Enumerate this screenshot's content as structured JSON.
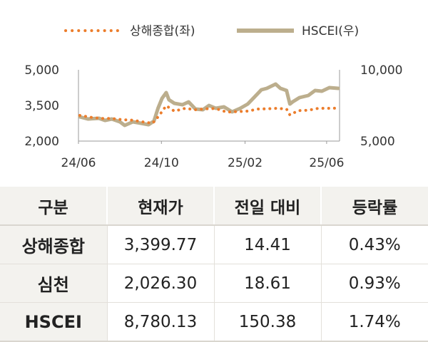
{
  "chart_data": {
    "type": "line",
    "x_ticks": [
      "24/06",
      "24/10",
      "25/02",
      "25/06"
    ],
    "y_left_ticks": [
      "5,000",
      "3,500",
      "2,000"
    ],
    "y_right_ticks": [
      "10,000",
      "5,000"
    ],
    "y_left_range": [
      2000,
      5000
    ],
    "y_right_range": [
      5000,
      10000
    ],
    "x_range": [
      "2024-06-01",
      "2025-06-20"
    ],
    "grid": false,
    "legend_position": "top",
    "series": [
      {
        "name": "상해종합(좌)",
        "axis": "left",
        "style": "dotted",
        "color": "#ec7d2c",
        "points": [
          [
            "2024-06-03",
            3080
          ],
          [
            "2024-06-20",
            3000
          ],
          [
            "2024-07-05",
            2950
          ],
          [
            "2024-07-20",
            2950
          ],
          [
            "2024-08-05",
            2900
          ],
          [
            "2024-08-20",
            2880
          ],
          [
            "2024-09-05",
            2800
          ],
          [
            "2024-09-18",
            2750
          ],
          [
            "2024-09-27",
            3050
          ],
          [
            "2024-10-08",
            3490
          ],
          [
            "2024-10-20",
            3260
          ],
          [
            "2024-11-05",
            3380
          ],
          [
            "2024-11-20",
            3320
          ],
          [
            "2024-12-05",
            3360
          ],
          [
            "2024-12-20",
            3370
          ],
          [
            "2025-01-05",
            3220
          ],
          [
            "2025-01-20",
            3240
          ],
          [
            "2025-02-05",
            3260
          ],
          [
            "2025-02-20",
            3350
          ],
          [
            "2025-03-05",
            3360
          ],
          [
            "2025-03-20",
            3380
          ],
          [
            "2025-04-03",
            3350
          ],
          [
            "2025-04-08",
            3100
          ],
          [
            "2025-04-20",
            3280
          ],
          [
            "2025-05-05",
            3300
          ],
          [
            "2025-05-20",
            3380
          ],
          [
            "2025-06-05",
            3380
          ],
          [
            "2025-06-18",
            3390
          ]
        ]
      },
      {
        "name": "HSCEI(우)",
        "axis": "right",
        "style": "solid",
        "color": "#bcae8d",
        "points": [
          [
            "2024-06-03",
            6700
          ],
          [
            "2024-06-15",
            6550
          ],
          [
            "2024-07-01",
            6600
          ],
          [
            "2024-07-10",
            6450
          ],
          [
            "2024-07-20",
            6550
          ],
          [
            "2024-08-01",
            6350
          ],
          [
            "2024-08-08",
            6100
          ],
          [
            "2024-08-20",
            6350
          ],
          [
            "2024-09-01",
            6250
          ],
          [
            "2024-09-12",
            6150
          ],
          [
            "2024-09-20",
            6400
          ],
          [
            "2024-09-26",
            7300
          ],
          [
            "2024-10-02",
            8000
          ],
          [
            "2024-10-08",
            8400
          ],
          [
            "2024-10-12",
            7900
          ],
          [
            "2024-10-20",
            7650
          ],
          [
            "2024-11-01",
            7550
          ],
          [
            "2024-11-10",
            7750
          ],
          [
            "2024-11-20",
            7250
          ],
          [
            "2024-12-01",
            7200
          ],
          [
            "2024-12-10",
            7500
          ],
          [
            "2024-12-20",
            7300
          ],
          [
            "2025-01-01",
            7400
          ],
          [
            "2025-01-13",
            7050
          ],
          [
            "2025-01-25",
            7300
          ],
          [
            "2025-02-05",
            7600
          ],
          [
            "2025-02-15",
            8100
          ],
          [
            "2025-02-25",
            8600
          ],
          [
            "2025-03-05",
            8700
          ],
          [
            "2025-03-18",
            9000
          ],
          [
            "2025-03-25",
            8700
          ],
          [
            "2025-04-03",
            8550
          ],
          [
            "2025-04-08",
            7600
          ],
          [
            "2025-04-12",
            7750
          ],
          [
            "2025-04-22",
            8050
          ],
          [
            "2025-05-05",
            8200
          ],
          [
            "2025-05-15",
            8550
          ],
          [
            "2025-05-25",
            8500
          ],
          [
            "2025-06-05",
            8750
          ],
          [
            "2025-06-18",
            8700
          ]
        ]
      }
    ]
  },
  "table": {
    "headers": [
      "구분",
      "현재가",
      "전일 대비",
      "등락률"
    ],
    "rows": [
      [
        "상해종합",
        "3,399.77",
        "14.41",
        "0.43%"
      ],
      [
        "심천",
        "2,026.30",
        "18.61",
        "0.93%"
      ],
      [
        "HSCEI",
        "8,780.13",
        "150.38",
        "1.74%"
      ]
    ]
  }
}
